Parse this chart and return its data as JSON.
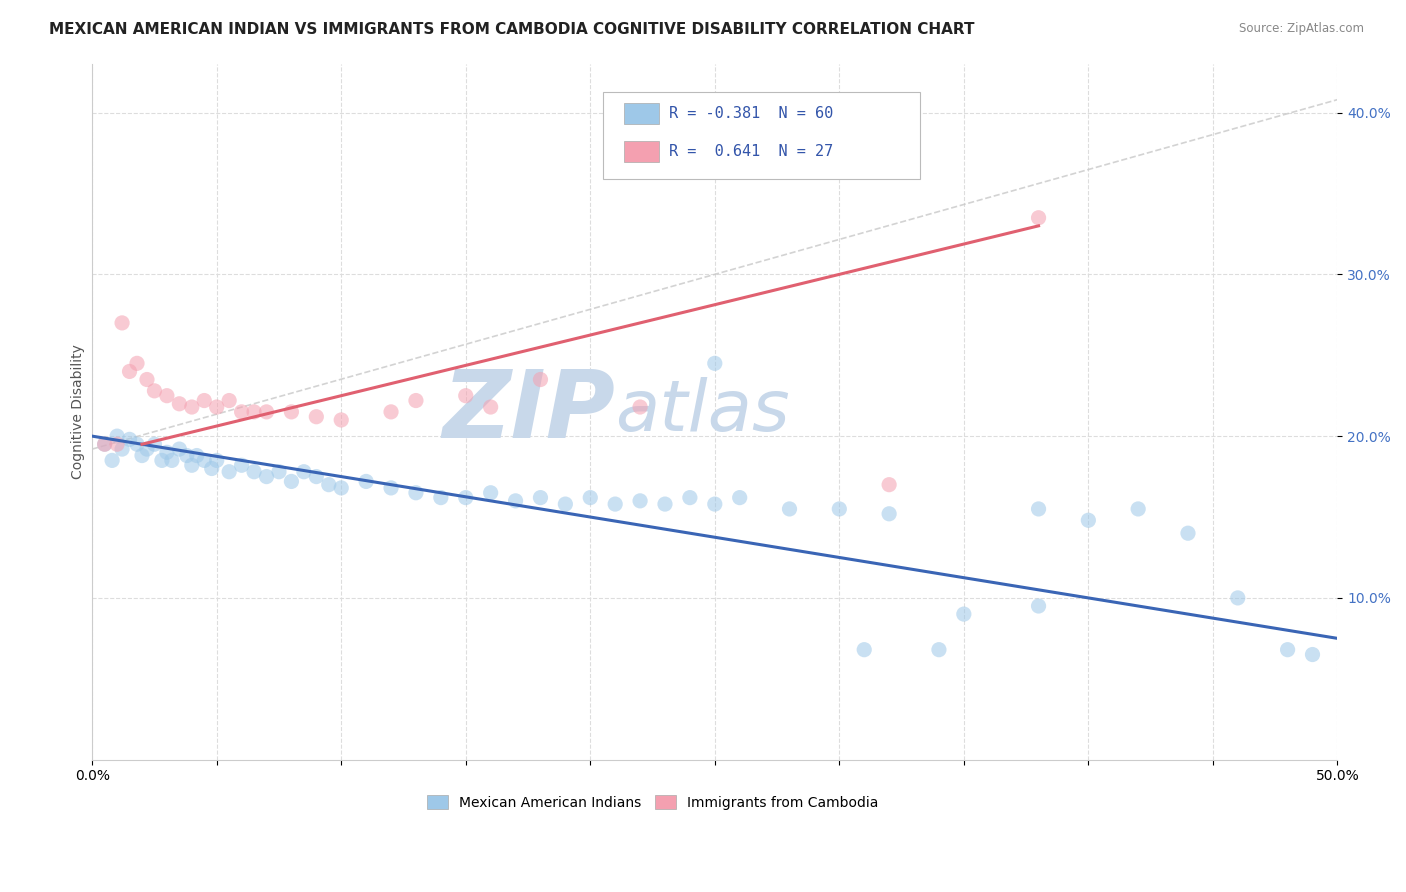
{
  "title": "MEXICAN AMERICAN INDIAN VS IMMIGRANTS FROM CAMBODIA COGNITIVE DISABILITY CORRELATION CHART",
  "source": "Source: ZipAtlas.com",
  "ylabel": "Cognitive Disability",
  "xlim": [
    0.0,
    0.5
  ],
  "ylim": [
    0.0,
    0.43
  ],
  "ytick_positions": [
    0.1,
    0.2,
    0.3,
    0.4
  ],
  "legend_entries": [
    {
      "label": "R = -0.381  N = 60",
      "color": "#aec6e8"
    },
    {
      "label": "R =  0.641  N = 27",
      "color": "#f4b8c1"
    }
  ],
  "blue_scatter": [
    [
      0.005,
      0.195
    ],
    [
      0.008,
      0.185
    ],
    [
      0.01,
      0.2
    ],
    [
      0.012,
      0.192
    ],
    [
      0.015,
      0.198
    ],
    [
      0.018,
      0.195
    ],
    [
      0.02,
      0.188
    ],
    [
      0.022,
      0.192
    ],
    [
      0.025,
      0.195
    ],
    [
      0.028,
      0.185
    ],
    [
      0.03,
      0.19
    ],
    [
      0.032,
      0.185
    ],
    [
      0.035,
      0.192
    ],
    [
      0.038,
      0.188
    ],
    [
      0.04,
      0.182
    ],
    [
      0.042,
      0.188
    ],
    [
      0.045,
      0.185
    ],
    [
      0.048,
      0.18
    ],
    [
      0.05,
      0.185
    ],
    [
      0.055,
      0.178
    ],
    [
      0.06,
      0.182
    ],
    [
      0.065,
      0.178
    ],
    [
      0.07,
      0.175
    ],
    [
      0.075,
      0.178
    ],
    [
      0.08,
      0.172
    ],
    [
      0.085,
      0.178
    ],
    [
      0.09,
      0.175
    ],
    [
      0.095,
      0.17
    ],
    [
      0.1,
      0.168
    ],
    [
      0.11,
      0.172
    ],
    [
      0.12,
      0.168
    ],
    [
      0.13,
      0.165
    ],
    [
      0.14,
      0.162
    ],
    [
      0.15,
      0.162
    ],
    [
      0.16,
      0.165
    ],
    [
      0.17,
      0.16
    ],
    [
      0.18,
      0.162
    ],
    [
      0.19,
      0.158
    ],
    [
      0.2,
      0.162
    ],
    [
      0.21,
      0.158
    ],
    [
      0.22,
      0.16
    ],
    [
      0.23,
      0.158
    ],
    [
      0.24,
      0.162
    ],
    [
      0.25,
      0.158
    ],
    [
      0.26,
      0.162
    ],
    [
      0.28,
      0.155
    ],
    [
      0.3,
      0.155
    ],
    [
      0.32,
      0.152
    ],
    [
      0.25,
      0.245
    ],
    [
      0.38,
      0.155
    ],
    [
      0.4,
      0.148
    ],
    [
      0.42,
      0.155
    ],
    [
      0.35,
      0.09
    ],
    [
      0.38,
      0.095
    ],
    [
      0.44,
      0.14
    ],
    [
      0.46,
      0.1
    ],
    [
      0.48,
      0.068
    ],
    [
      0.49,
      0.065
    ],
    [
      0.31,
      0.068
    ],
    [
      0.34,
      0.068
    ]
  ],
  "pink_scatter": [
    [
      0.005,
      0.195
    ],
    [
      0.01,
      0.195
    ],
    [
      0.012,
      0.27
    ],
    [
      0.015,
      0.24
    ],
    [
      0.018,
      0.245
    ],
    [
      0.022,
      0.235
    ],
    [
      0.025,
      0.228
    ],
    [
      0.03,
      0.225
    ],
    [
      0.035,
      0.22
    ],
    [
      0.04,
      0.218
    ],
    [
      0.045,
      0.222
    ],
    [
      0.05,
      0.218
    ],
    [
      0.055,
      0.222
    ],
    [
      0.06,
      0.215
    ],
    [
      0.065,
      0.215
    ],
    [
      0.07,
      0.215
    ],
    [
      0.08,
      0.215
    ],
    [
      0.09,
      0.212
    ],
    [
      0.1,
      0.21
    ],
    [
      0.12,
      0.215
    ],
    [
      0.13,
      0.222
    ],
    [
      0.15,
      0.225
    ],
    [
      0.16,
      0.218
    ],
    [
      0.18,
      0.235
    ],
    [
      0.22,
      0.218
    ],
    [
      0.32,
      0.17
    ],
    [
      0.38,
      0.335
    ]
  ],
  "blue_line": [
    [
      0.0,
      0.2
    ],
    [
      0.5,
      0.075
    ]
  ],
  "pink_line": [
    [
      0.02,
      0.195
    ],
    [
      0.38,
      0.33
    ]
  ],
  "gray_line": [
    [
      0.0,
      0.192
    ],
    [
      0.5,
      0.408
    ]
  ],
  "background_color": "#ffffff",
  "grid_color": "#dddddd",
  "scatter_alpha": 0.55,
  "scatter_size": 120,
  "blue_color": "#9ec8e8",
  "pink_color": "#f4a0b0",
  "blue_line_color": "#3a65b5",
  "pink_line_color": "#e06070",
  "gray_line_color": "#c8c8c8",
  "title_fontsize": 11,
  "axis_fontsize": 10,
  "tick_fontsize": 10,
  "watermark_zip": "ZIP",
  "watermark_atlas": "atlas",
  "watermark_color_zip": "#c8d8ea",
  "watermark_color_atlas": "#c8d8ea"
}
